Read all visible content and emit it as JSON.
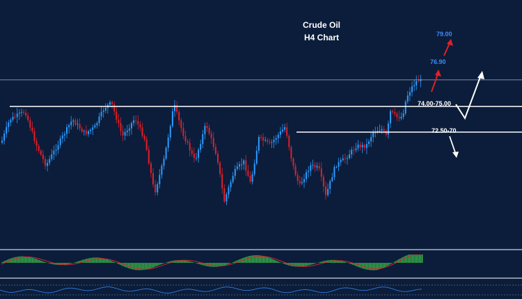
{
  "colors": {
    "background": "#0b1d3a",
    "bull_candle": "#2f9bff",
    "bear_candle": "#e0202a",
    "level_line": "#ffffff",
    "panel_divider": "#cfd6e0",
    "macd_histogram": "#39b54a",
    "macd_signal": "#e0202a",
    "oscillator": "#2f7de0",
    "target_label": "#3d8bff",
    "bull_arrow": "#e0202a",
    "scenario_arrow": "#ffffff"
  },
  "chart_data": {
    "type": "candlestick",
    "instrument": "Crude Oil",
    "timeframe": "H4",
    "title_line1": "Crude Oil",
    "title_line2": "H4 Chart",
    "ylim": [
      67.8,
      80.6
    ],
    "levels": [
      {
        "label": "74.00-75.00",
        "value": 75.0
      },
      {
        "label": "72.50-70",
        "value": 73.65
      },
      {
        "label": "",
        "value": 76.4
      }
    ],
    "targets": [
      {
        "label": "76.90",
        "value": 77.75
      },
      {
        "label": "79.00",
        "value": 79.65
      }
    ],
    "indicators": [
      "MACD",
      "Oscillator"
    ]
  }
}
